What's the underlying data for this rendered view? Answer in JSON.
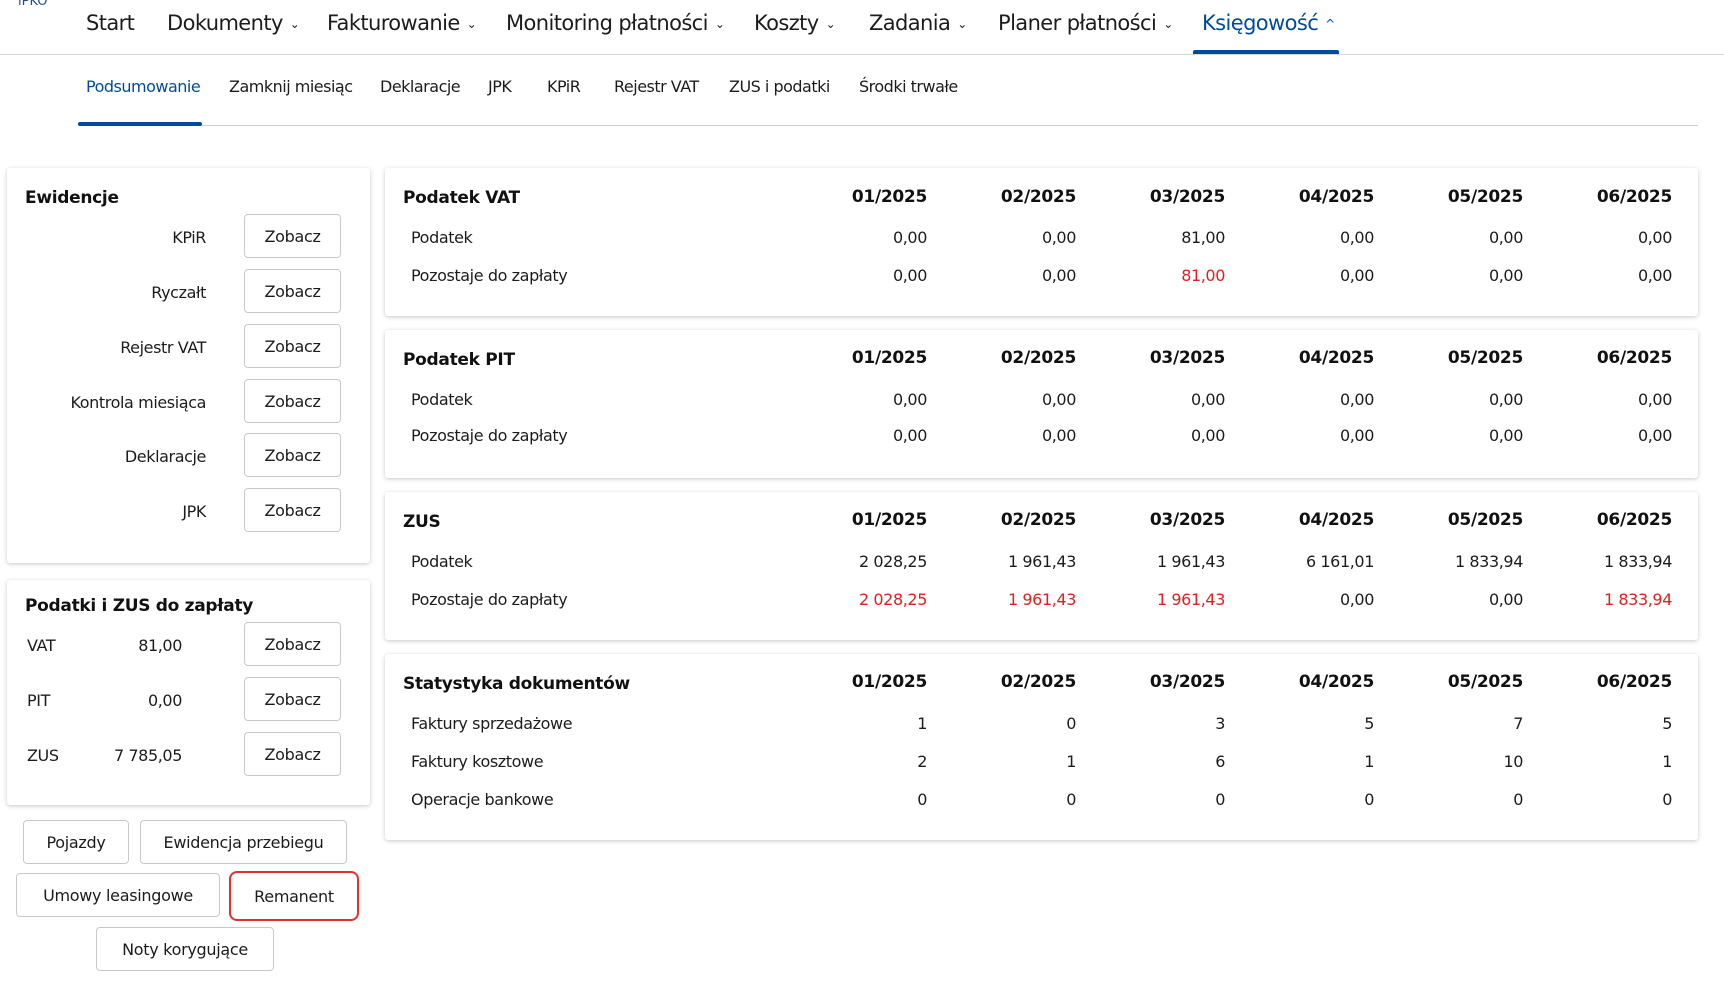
{
  "app": {
    "brand": "iPKO"
  },
  "topnav": {
    "items": [
      {
        "label": "Start",
        "dropdown": false
      },
      {
        "label": "Dokumenty",
        "dropdown": true
      },
      {
        "label": "Fakturowanie",
        "dropdown": true
      },
      {
        "label": "Monitoring płatności",
        "dropdown": true
      },
      {
        "label": "Koszty",
        "dropdown": true
      },
      {
        "label": "Zadania",
        "dropdown": true
      },
      {
        "label": "Planer płatności",
        "dropdown": true
      },
      {
        "label": "Księgowość",
        "dropdown": true,
        "active": true
      }
    ],
    "chevron_down": "⌄",
    "chevron_up": "^"
  },
  "subnav": {
    "items": [
      {
        "label": "Podsumowanie",
        "active": true
      },
      {
        "label": "Zamknij miesiąc"
      },
      {
        "label": "Deklaracje"
      },
      {
        "label": "JPK"
      },
      {
        "label": "KPiR"
      },
      {
        "label": "Rejestr VAT"
      },
      {
        "label": "ZUS i podatki"
      },
      {
        "label": "Środki trwałe"
      }
    ]
  },
  "ewidencje": {
    "title": "Ewidencje",
    "rows": [
      {
        "label": "KPiR",
        "button": "Zobacz"
      },
      {
        "label": "Ryczałt",
        "button": "Zobacz"
      },
      {
        "label": "Rejestr VAT",
        "button": "Zobacz"
      },
      {
        "label": "Kontrola miesiąca",
        "button": "Zobacz"
      },
      {
        "label": "Deklaracje",
        "button": "Zobacz"
      },
      {
        "label": "JPK",
        "button": "Zobacz"
      }
    ]
  },
  "taxes_due": {
    "title": "Podatki i ZUS do zapłaty",
    "rows": [
      {
        "label": "VAT",
        "amount": "81,00",
        "button": "Zobacz"
      },
      {
        "label": "PIT",
        "amount": "0,00",
        "button": "Zobacz"
      },
      {
        "label": "ZUS",
        "amount": "7 785,05",
        "button": "Zobacz"
      }
    ]
  },
  "extra_buttons": {
    "pojazdy": "Pojazdy",
    "ewidencja_przebiegu": "Ewidencja przebiegu",
    "umowy_leasingowe": "Umowy leasingowe",
    "remanent": "Remanent",
    "noty_korygujace": "Noty korygujące"
  },
  "months": [
    "01/2025",
    "02/2025",
    "03/2025",
    "04/2025",
    "05/2025",
    "06/2025"
  ],
  "tables": [
    {
      "title": "Podatek VAT",
      "rows": [
        {
          "label": "Podatek",
          "values": [
            "0,00",
            "0,00",
            "81,00",
            "0,00",
            "0,00",
            "0,00"
          ],
          "red": [
            false,
            false,
            false,
            false,
            false,
            false
          ]
        },
        {
          "label": "Pozostaje do zapłaty",
          "values": [
            "0,00",
            "0,00",
            "81,00",
            "0,00",
            "0,00",
            "0,00"
          ],
          "red": [
            false,
            false,
            true,
            false,
            false,
            false
          ]
        }
      ]
    },
    {
      "title": "Podatek PIT",
      "rows": [
        {
          "label": "Podatek",
          "values": [
            "0,00",
            "0,00",
            "0,00",
            "0,00",
            "0,00",
            "0,00"
          ],
          "red": [
            false,
            false,
            false,
            false,
            false,
            false
          ]
        },
        {
          "label": "Pozostaje do zapłaty",
          "values": [
            "0,00",
            "0,00",
            "0,00",
            "0,00",
            "0,00",
            "0,00"
          ],
          "red": [
            false,
            false,
            false,
            false,
            false,
            false
          ]
        }
      ]
    },
    {
      "title": "ZUS",
      "rows": [
        {
          "label": "Podatek",
          "values": [
            "2 028,25",
            "1 961,43",
            "1 961,43",
            "6 161,01",
            "1 833,94",
            "1 833,94"
          ],
          "red": [
            false,
            false,
            false,
            false,
            false,
            false
          ]
        },
        {
          "label": "Pozostaje do zapłaty",
          "values": [
            "2 028,25",
            "1 961,43",
            "1 961,43",
            "0,00",
            "0,00",
            "1 833,94"
          ],
          "red": [
            true,
            true,
            true,
            false,
            false,
            true
          ]
        }
      ]
    },
    {
      "title": "Statystyka dokumentów",
      "rows": [
        {
          "label": "Faktury sprzedażowe",
          "values": [
            "1",
            "0",
            "3",
            "5",
            "7",
            "5"
          ],
          "red": [
            false,
            false,
            false,
            false,
            false,
            false
          ]
        },
        {
          "label": "Faktury kosztowe",
          "values": [
            "2",
            "1",
            "6",
            "1",
            "10",
            "1"
          ],
          "red": [
            false,
            false,
            false,
            false,
            false,
            false
          ]
        },
        {
          "label": "Operacje bankowe",
          "values": [
            "0",
            "0",
            "0",
            "0",
            "0",
            "0"
          ],
          "red": [
            false,
            false,
            false,
            false,
            false,
            false
          ]
        }
      ]
    }
  ],
  "colors": {
    "accent": "#004c9a",
    "due_red": "#e02020",
    "highlight_border": "#e03131"
  }
}
